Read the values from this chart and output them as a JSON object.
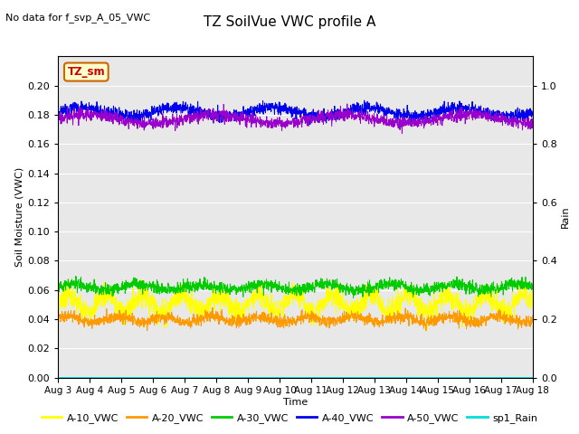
{
  "title": "TZ SoilVue VWC profile A",
  "subtitle": "No data for f_svp_A_05_VWC",
  "xlabel": "Time",
  "ylabel_left": "Soil Moisture (VWC)",
  "ylabel_right": "Rain",
  "ylim_left": [
    0.0,
    0.22
  ],
  "ylim_right": [
    0.0,
    1.1
  ],
  "yticks_left": [
    0.0,
    0.02,
    0.04,
    0.06,
    0.08,
    0.1,
    0.12,
    0.14,
    0.16,
    0.18,
    0.2
  ],
  "yticks_right": [
    0.0,
    0.2,
    0.4,
    0.6,
    0.8,
    1.0
  ],
  "n_points": 2000,
  "series": {
    "A10": {
      "mean": 0.051,
      "amp": 0.006,
      "period": 1.2,
      "noise": 0.004,
      "color": "#ffff00",
      "label": "A-10_VWC",
      "lw": 0.7
    },
    "A20": {
      "mean": 0.04,
      "amp": 0.002,
      "period": 1.5,
      "noise": 0.002,
      "color": "#ff9900",
      "label": "A-20_VWC",
      "lw": 0.7
    },
    "A30": {
      "mean": 0.062,
      "amp": 0.002,
      "period": 2.0,
      "noise": 0.002,
      "color": "#00cc00",
      "label": "A-30_VWC",
      "lw": 0.7
    },
    "A40": {
      "mean": 0.182,
      "amp": 0.003,
      "period": 3.0,
      "noise": 0.002,
      "color": "#0000ee",
      "label": "A-40_VWC",
      "lw": 0.7
    },
    "A50": {
      "mean": 0.177,
      "amp": 0.003,
      "period": 4.0,
      "noise": 0.002,
      "color": "#9900cc",
      "label": "A-50_VWC",
      "lw": 0.7
    },
    "Rain": {
      "mean": 0.0,
      "amp": 0.0,
      "period": 1.0,
      "noise": 0.0,
      "color": "#00dddd",
      "label": "sp1_Rain",
      "lw": 0.8
    }
  },
  "tz_sm_box": {
    "text": "TZ_sm",
    "facecolor": "#ffffcc",
    "edgecolor": "#cc6600",
    "textcolor": "#cc0000"
  },
  "fig_bg_color": "#ffffff",
  "plot_bg_color": "#e8e8e8",
  "grid_color": "#ffffff",
  "title_fontsize": 11,
  "subtitle_fontsize": 8,
  "axis_label_fontsize": 8,
  "tick_fontsize": 8,
  "legend_fontsize": 8,
  "xtick_labels": [
    "Aug 3",
    "Aug 4",
    "Aug 5",
    "Aug 6",
    "Aug 7",
    "Aug 8",
    "Aug 9",
    "Aug 10",
    "Aug 11",
    "Aug 12",
    "Aug 13",
    "Aug 14",
    "Aug 15",
    "Aug 16",
    "Aug 17",
    "Aug 18"
  ]
}
